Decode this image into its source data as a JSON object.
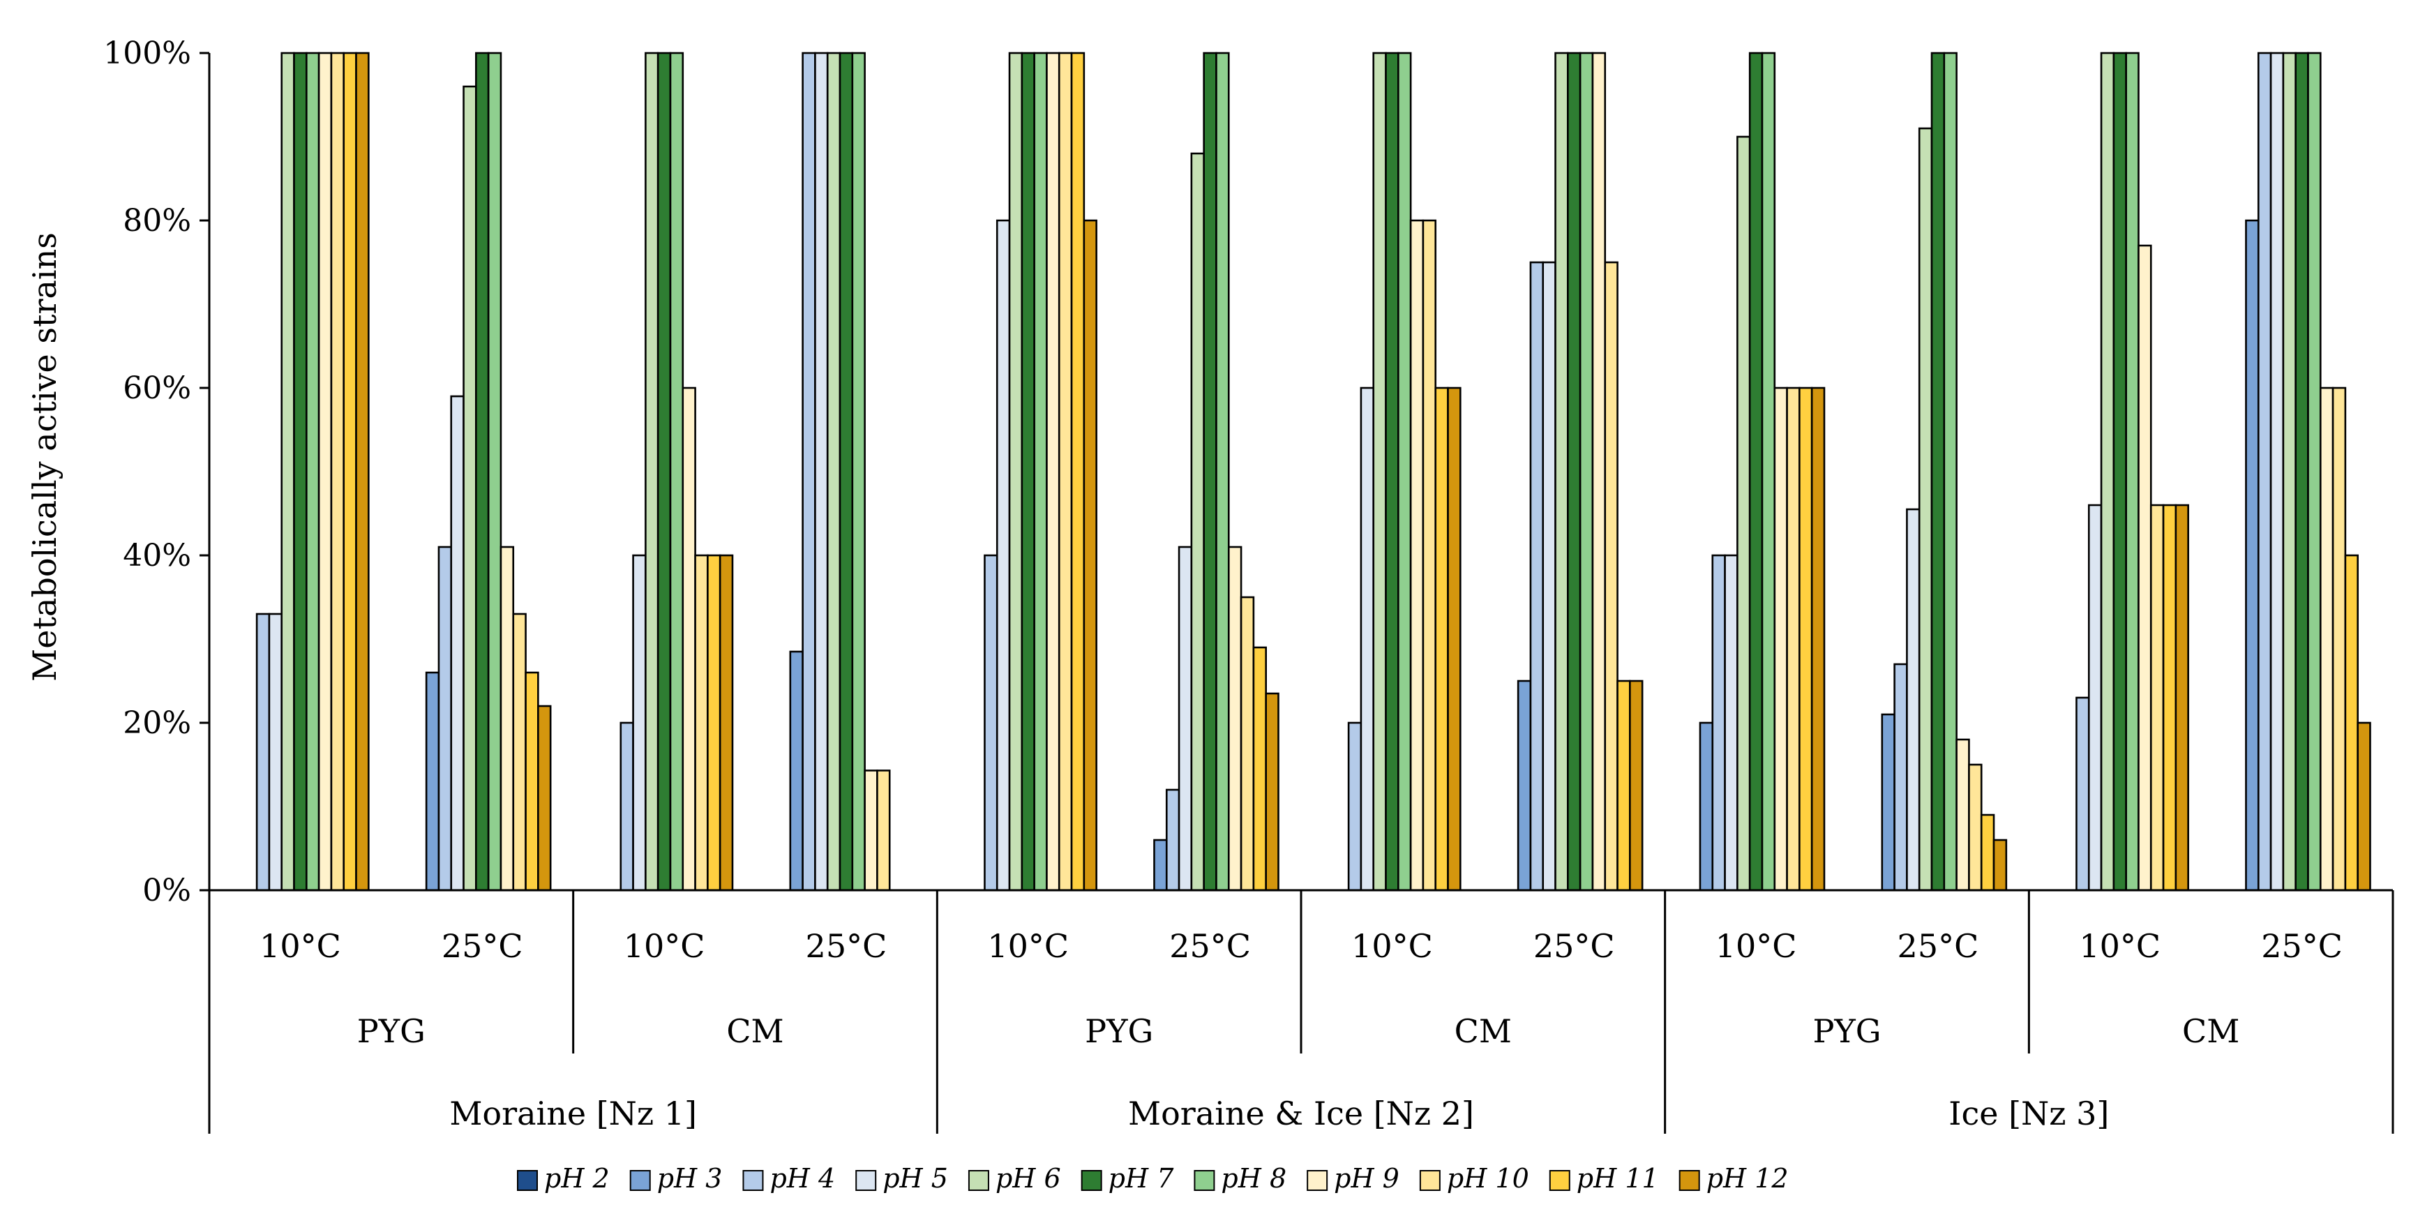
{
  "chart_data": {
    "type": "bar",
    "title": "",
    "ylabel": "Metabolically active strains",
    "ylim": [
      0,
      100
    ],
    "yticks": [
      0,
      20,
      40,
      60,
      80,
      100
    ],
    "ytick_labels": [
      "0%",
      "20%",
      "40%",
      "60%",
      "80%",
      "100%"
    ],
    "legend_position": "bottom",
    "groups": [
      {
        "label": "Moraine [Nz 1]",
        "media": [
          {
            "label": "PYG",
            "temps": [
              {
                "label": "10°C",
                "values": [
                  0,
                  0,
                  33,
                  33,
                  100,
                  100,
                  100,
                  100,
                  100,
                  100,
                  100
                ]
              },
              {
                "label": "25°C",
                "values": [
                  0,
                  26,
                  41,
                  59,
                  96,
                  100,
                  100,
                  41,
                  33,
                  26,
                  22
                ]
              }
            ]
          },
          {
            "label": "CM",
            "temps": [
              {
                "label": "10°C",
                "values": [
                  0,
                  0,
                  20,
                  40,
                  100,
                  100,
                  100,
                  60,
                  40,
                  40,
                  40
                ]
              },
              {
                "label": "25°C",
                "values": [
                  0,
                  28.5,
                  100,
                  100,
                  100,
                  100,
                  100,
                  14.3,
                  14.3,
                  0,
                  0
                ]
              }
            ]
          }
        ]
      },
      {
        "label": "Moraine & Ice [Nz 2]",
        "media": [
          {
            "label": "PYG",
            "temps": [
              {
                "label": "10°C",
                "values": [
                  0,
                  0,
                  40,
                  80,
                  100,
                  100,
                  100,
                  100,
                  100,
                  100,
                  80
                ]
              },
              {
                "label": "25°C",
                "values": [
                  0,
                  6,
                  12,
                  41,
                  88,
                  100,
                  100,
                  41,
                  35,
                  29,
                  23.5
                ]
              }
            ]
          },
          {
            "label": "CM",
            "temps": [
              {
                "label": "10°C",
                "values": [
                  0,
                  0,
                  20,
                  60,
                  100,
                  100,
                  100,
                  80,
                  80,
                  60,
                  60
                ]
              },
              {
                "label": "25°C",
                "values": [
                  0,
                  25,
                  75,
                  75,
                  100,
                  100,
                  100,
                  100,
                  75,
                  25,
                  25
                ]
              }
            ]
          }
        ]
      },
      {
        "label": "Ice [Nz 3]",
        "media": [
          {
            "label": "PYG",
            "temps": [
              {
                "label": "10°C",
                "values": [
                  0,
                  20,
                  40,
                  40,
                  90,
                  100,
                  100,
                  60,
                  60,
                  60,
                  60
                ]
              },
              {
                "label": "25°C",
                "values": [
                  0,
                  21,
                  27,
                  45.5,
                  91,
                  100,
                  100,
                  18,
                  15,
                  9,
                  6
                ]
              }
            ]
          },
          {
            "label": "CM",
            "temps": [
              {
                "label": "10°C",
                "values": [
                  0,
                  0,
                  23,
                  46,
                  100,
                  100,
                  100,
                  77,
                  46,
                  46,
                  46
                ]
              },
              {
                "label": "25°C",
                "values": [
                  0,
                  80,
                  100,
                  100,
                  100,
                  100,
                  100,
                  60,
                  60,
                  40,
                  20
                ]
              }
            ]
          }
        ]
      }
    ],
    "series": [
      {
        "name": "pH 2",
        "color": "#1f4e8c"
      },
      {
        "name": "pH 3",
        "color": "#7aa3d6"
      },
      {
        "name": "pH 4",
        "color": "#b4cbe9"
      },
      {
        "name": "pH 5",
        "color": "#dce6f2"
      },
      {
        "name": "pH 6",
        "color": "#c5e0b4"
      },
      {
        "name": "pH 7",
        "color": "#2e7d32"
      },
      {
        "name": "pH 8",
        "color": "#8fcf8f"
      },
      {
        "name": "pH 9",
        "color": "#fff2cc"
      },
      {
        "name": "pH 10",
        "color": "#ffe699"
      },
      {
        "name": "pH 11",
        "color": "#ffd040"
      },
      {
        "name": "pH 12",
        "color": "#d4960e"
      }
    ]
  }
}
